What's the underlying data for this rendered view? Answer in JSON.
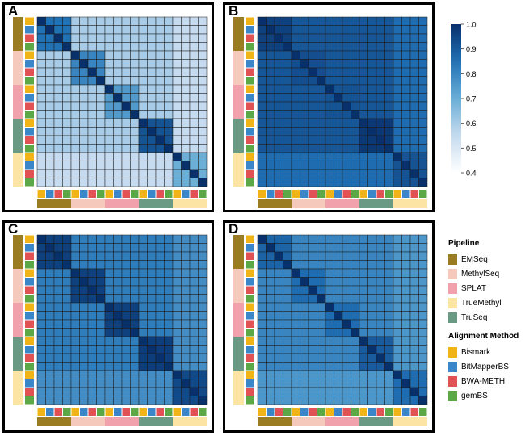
{
  "panels": [
    "A",
    "B",
    "C",
    "D"
  ],
  "colorbar": {
    "ticks": [
      "1.0",
      "0.9",
      "0.8",
      "0.7",
      "0.6",
      "0.5",
      "0.4"
    ],
    "min": 0.4,
    "max": 1.0,
    "color_low": "#ffffff",
    "color_high": "#08306b"
  },
  "legend": {
    "pipeline_title": "Pipeline",
    "pipelines": [
      {
        "label": "EMSeq",
        "color": "#9a7d22"
      },
      {
        "label": "MethylSeq",
        "color": "#f5c9bb"
      },
      {
        "label": "SPLAT",
        "color": "#f0a1ab"
      },
      {
        "label": "TrueMethyl",
        "color": "#fce4a5"
      },
      {
        "label": "TruSeq",
        "color": "#6a9a84"
      }
    ],
    "method_title": "Alignment Method",
    "methods": [
      {
        "label": "Bismark",
        "color": "#f0b416"
      },
      {
        "label": "BitMapperBS",
        "color": "#3a86c8"
      },
      {
        "label": "BWA-METH",
        "color": "#e15255"
      },
      {
        "label": "gemBS",
        "color": "#5ca746"
      }
    ]
  },
  "chart_data": {
    "type": "heatmap",
    "rows": 20,
    "cols": 20,
    "row_annotation_pipelines": [
      "EMSeq",
      "MethylSeq",
      "SPLAT",
      "TruSeq",
      "TrueMethyl"
    ],
    "col_annotation_pipelines": [
      "EMSeq",
      "MethylSeq",
      "SPLAT",
      "TruSeq",
      "TrueMethyl"
    ],
    "alignment_methods_per_block": [
      "Bismark",
      "BitMapperBS",
      "BWA-METH",
      "gemBS"
    ],
    "value_range": [
      0.4,
      1.0
    ],
    "panels": [
      {
        "panel": "A",
        "diagonal": 1.0,
        "within_block": 0.88,
        "between_block": [
          [
            0,
            0.6,
            0.6,
            0.6,
            0.55
          ],
          [
            0.6,
            0,
            0.6,
            0.6,
            0.55
          ],
          [
            0.6,
            0.6,
            0,
            0.6,
            0.55
          ],
          [
            0.6,
            0.6,
            0.6,
            0,
            0.55
          ],
          [
            0.55,
            0.55,
            0.55,
            0.55,
            0
          ]
        ],
        "within_override": [
          0.85,
          0.8,
          0.75,
          0.92,
          0.7
        ]
      },
      {
        "panel": "B",
        "diagonal": 1.0,
        "within_block": 0.95,
        "between_block": [
          [
            0,
            0.91,
            0.91,
            0.91,
            0.86
          ],
          [
            0.91,
            0,
            0.91,
            0.91,
            0.86
          ],
          [
            0.91,
            0.91,
            0,
            0.91,
            0.86
          ],
          [
            0.91,
            0.91,
            0.91,
            0,
            0.86
          ],
          [
            0.86,
            0.86,
            0.86,
            0.86,
            0
          ]
        ],
        "within_override": [
          0.96,
          0.93,
          0.92,
          0.98,
          0.92
        ]
      },
      {
        "panel": "C",
        "diagonal": 1.0,
        "within_block": 0.95,
        "between_block": [
          [
            0,
            0.82,
            0.82,
            0.82,
            0.78
          ],
          [
            0.82,
            0,
            0.82,
            0.82,
            0.78
          ],
          [
            0.82,
            0.82,
            0,
            0.82,
            0.78
          ],
          [
            0.82,
            0.82,
            0.82,
            0,
            0.78
          ],
          [
            0.78,
            0.78,
            0.78,
            0.78,
            0
          ]
        ],
        "within_override": [
          0.96,
          0.96,
          0.96,
          0.97,
          0.94
        ]
      },
      {
        "panel": "D",
        "diagonal": 1.0,
        "within_block": 0.88,
        "between_block": [
          [
            0,
            0.8,
            0.8,
            0.8,
            0.76
          ],
          [
            0.8,
            0,
            0.8,
            0.8,
            0.76
          ],
          [
            0.8,
            0.8,
            0,
            0.8,
            0.76
          ],
          [
            0.8,
            0.8,
            0.8,
            0,
            0.76
          ],
          [
            0.76,
            0.76,
            0.76,
            0.76,
            0
          ]
        ],
        "within_override": [
          0.88,
          0.86,
          0.86,
          0.9,
          0.86
        ]
      }
    ]
  }
}
